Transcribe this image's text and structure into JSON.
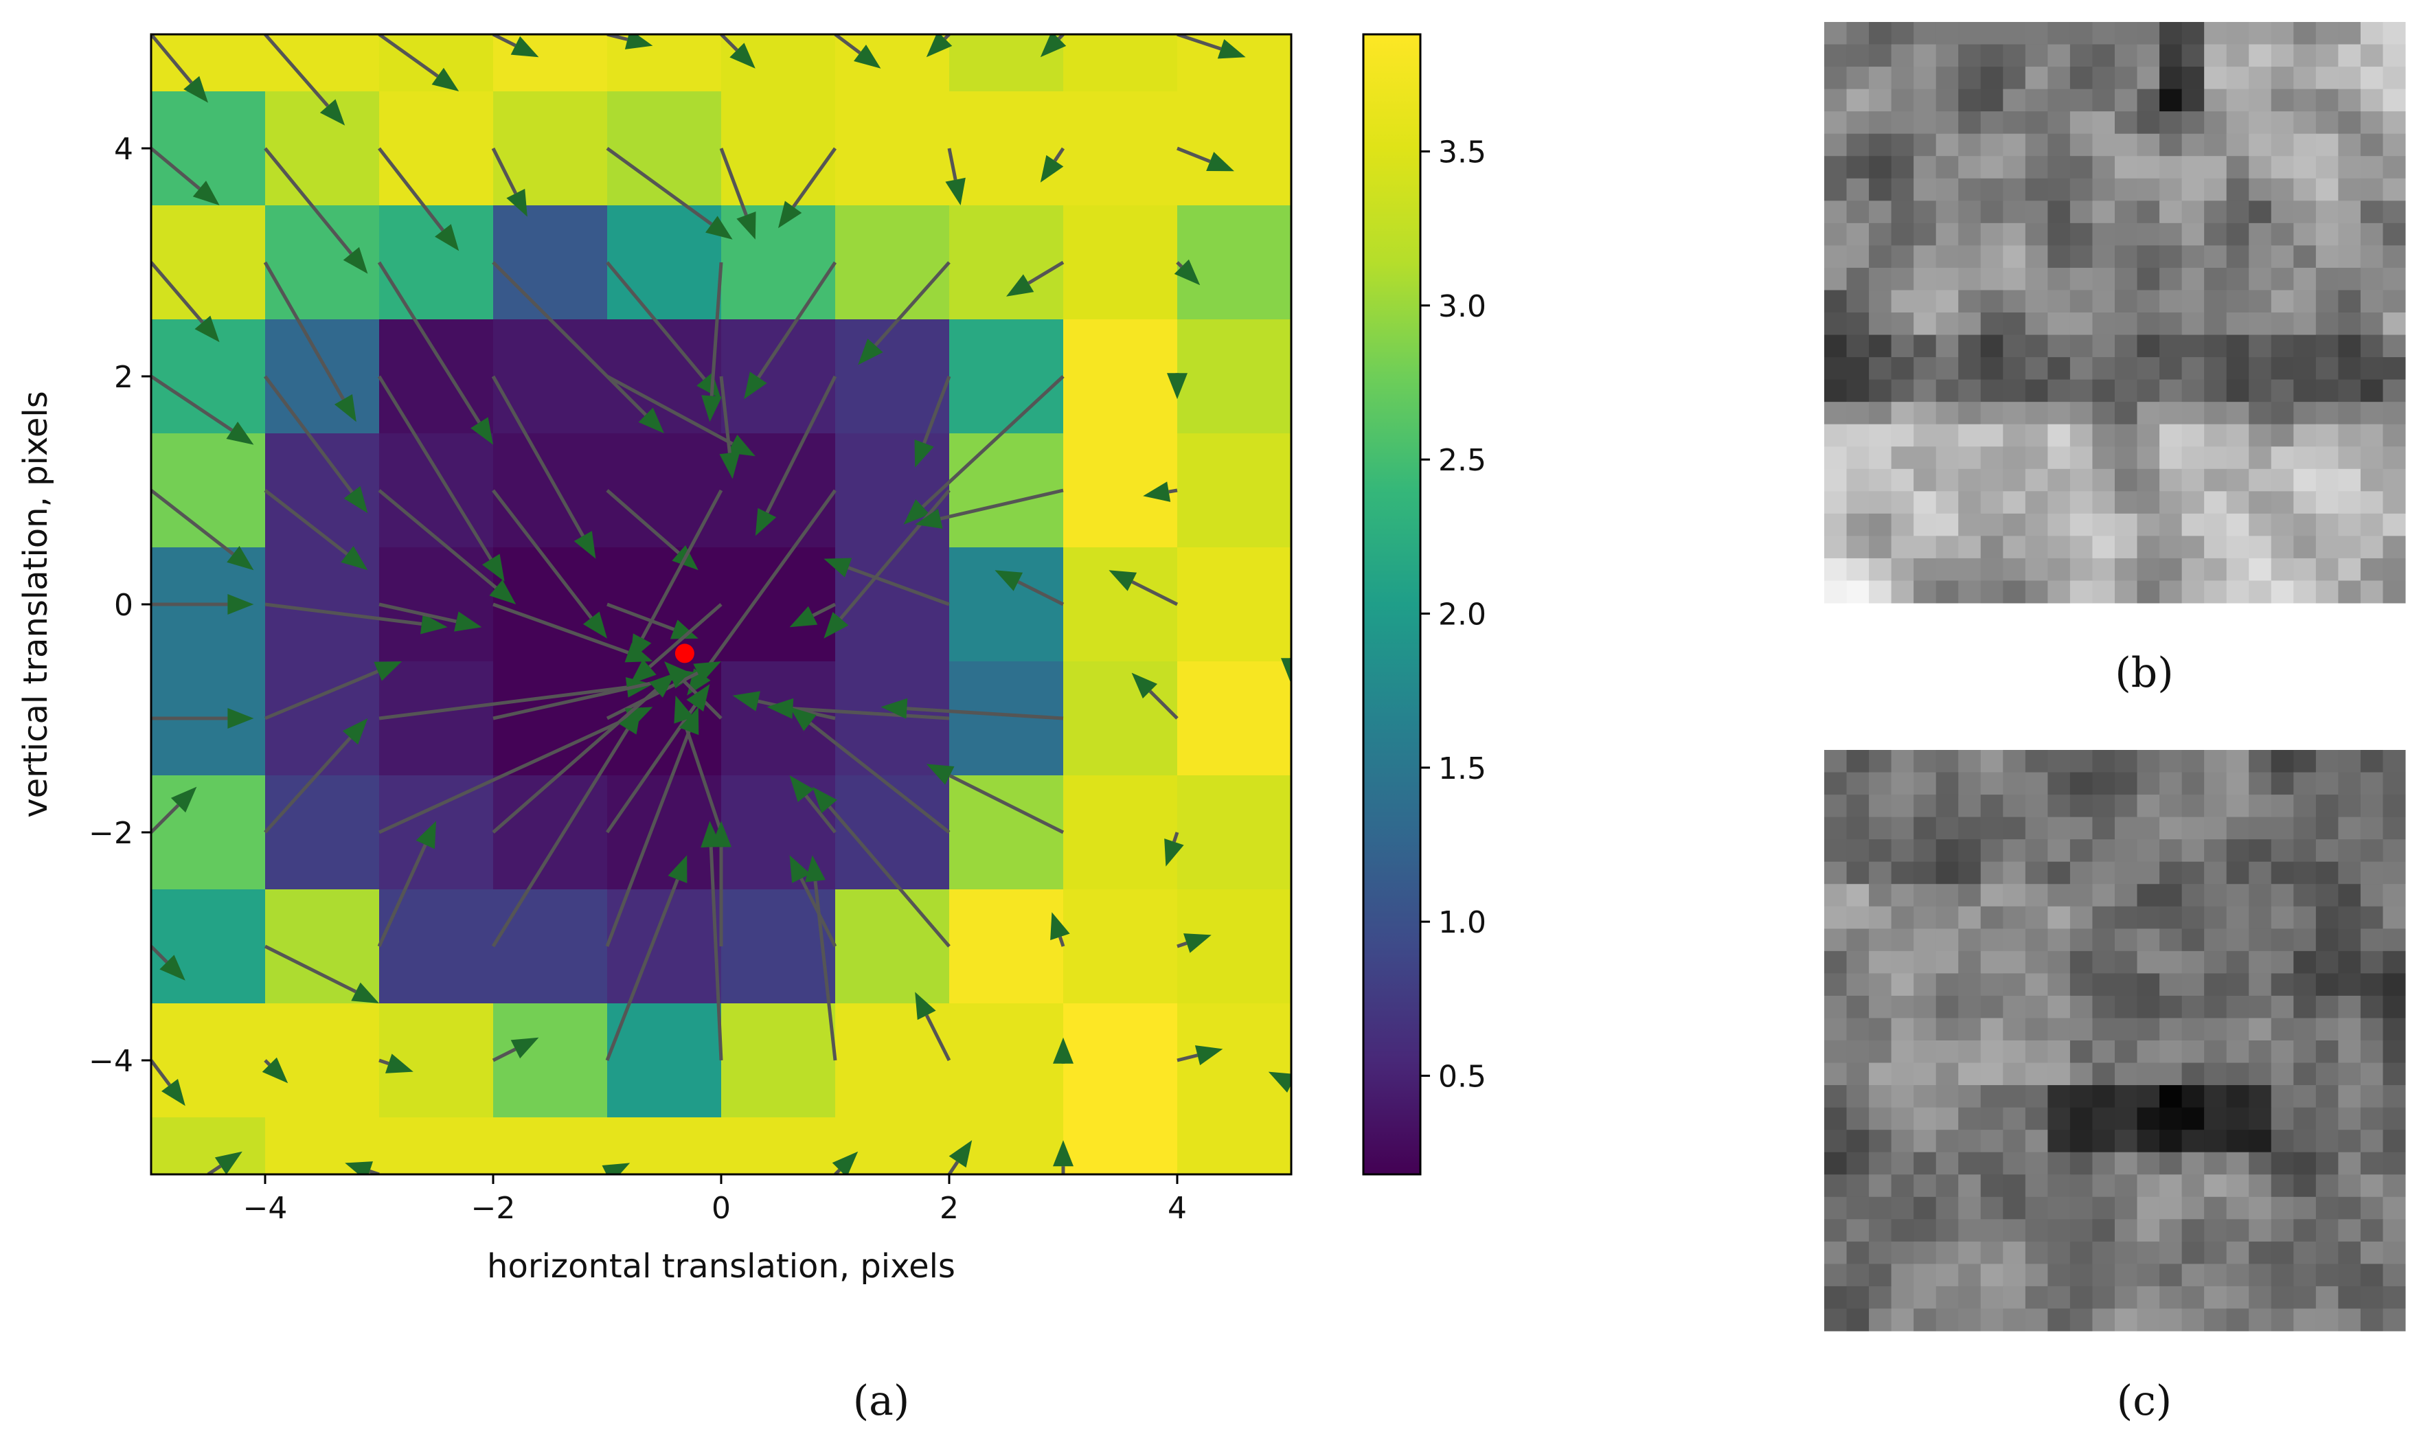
{
  "chart_data": [
    {
      "panel": "a",
      "type": "heatmap",
      "overlay": "quiver",
      "xlabel": "horizontal translation, pixels",
      "ylabel": "vertical translation, pixels",
      "xlim": [
        -5,
        5
      ],
      "ylim": [
        -5,
        5
      ],
      "xticks": [
        -4,
        -2,
        0,
        2,
        4
      ],
      "yticks": [
        -4,
        -2,
        0,
        2,
        4
      ],
      "xtick_labels": [
        "−4",
        "−2",
        "0",
        "2",
        "4"
      ],
      "ytick_labels": [
        "−4",
        "−2",
        "0",
        "2",
        "4"
      ],
      "grid_x_centers": [
        -4.5,
        -3.5,
        -2.5,
        -1.5,
        -0.5,
        0.5,
        1.5,
        2.5,
        3.5,
        4.5
      ],
      "grid_y_centers_top_to_bottom": [
        5.0,
        4.0,
        3.0,
        2.0,
        1.0,
        0.0,
        -1.0,
        -2.0,
        -3.0,
        -4.0,
        -5.0
      ],
      "values": [
        [
          3.6,
          3.6,
          3.5,
          3.7,
          3.6,
          3.5,
          3.6,
          3.3,
          3.5,
          3.6
        ],
        [
          2.5,
          3.2,
          3.6,
          3.3,
          3.1,
          3.5,
          3.6,
          3.6,
          3.6,
          3.6
        ],
        [
          3.4,
          2.5,
          2.3,
          1.1,
          2.0,
          2.5,
          3.0,
          3.2,
          3.5,
          2.9
        ],
        [
          2.3,
          1.3,
          0.3,
          0.4,
          0.4,
          0.5,
          0.7,
          2.2,
          3.8,
          3.2
        ],
        [
          2.8,
          0.6,
          0.4,
          0.3,
          0.3,
          0.3,
          0.6,
          2.9,
          3.8,
          3.4
        ],
        [
          1.5,
          0.6,
          0.3,
          0.2,
          0.2,
          0.2,
          0.6,
          1.7,
          3.4,
          3.6
        ],
        [
          1.5,
          0.6,
          0.4,
          0.2,
          0.2,
          0.4,
          0.6,
          1.4,
          3.3,
          3.8
        ],
        [
          2.7,
          0.8,
          0.6,
          0.4,
          0.3,
          0.5,
          0.7,
          3.0,
          3.5,
          3.4
        ],
        [
          2.1,
          3.1,
          0.8,
          0.8,
          0.6,
          0.8,
          3.1,
          3.8,
          3.6,
          3.5
        ],
        [
          3.6,
          3.6,
          3.4,
          2.8,
          2.0,
          3.2,
          3.6,
          3.6,
          3.9,
          3.6
        ],
        [
          3.3,
          3.6,
          3.6,
          3.6,
          3.6,
          3.6,
          3.6,
          3.6,
          3.9,
          3.6
        ]
      ],
      "marker": {
        "x": -0.32,
        "y": -0.43,
        "color": "#ff0000"
      },
      "arrow_color": "#555555",
      "arrowhead_color": "#1e6b2a",
      "arrows": [
        [
          -5,
          5,
          -4.5,
          4.4
        ],
        [
          -4,
          5,
          -3.3,
          4.2
        ],
        [
          -3,
          5,
          -2.3,
          4.5
        ],
        [
          -2,
          5,
          -1.6,
          4.8
        ],
        [
          -1,
          5,
          -0.6,
          4.9
        ],
        [
          0,
          5,
          0.3,
          4.7
        ],
        [
          1,
          5,
          1.4,
          4.7
        ],
        [
          2,
          5,
          1.8,
          4.8
        ],
        [
          3,
          5,
          2.8,
          4.8
        ],
        [
          4,
          5,
          4.6,
          4.8
        ],
        [
          -4,
          4,
          -3.1,
          2.9
        ],
        [
          -3,
          4,
          -2.3,
          3.1
        ],
        [
          -2,
          4,
          -1.7,
          3.4
        ],
        [
          -1,
          4,
          0.1,
          3.2
        ],
        [
          0,
          4,
          0.3,
          3.2
        ],
        [
          1,
          4,
          0.5,
          3.3
        ],
        [
          2,
          4,
          2.1,
          3.5
        ],
        [
          3,
          4,
          2.8,
          3.7
        ],
        [
          4,
          4,
          4.5,
          3.8
        ],
        [
          -5,
          4,
          -4.4,
          3.5
        ],
        [
          -4,
          3,
          -3.2,
          1.6
        ],
        [
          -3,
          3,
          -2.0,
          1.4
        ],
        [
          -2,
          3,
          -0.5,
          1.5
        ],
        [
          -1,
          3,
          0.0,
          1.8
        ],
        [
          0,
          3,
          -0.1,
          1.6
        ],
        [
          1,
          3,
          0.2,
          1.8
        ],
        [
          2,
          3,
          1.2,
          2.1
        ],
        [
          3,
          3,
          2.5,
          2.7
        ],
        [
          4,
          3,
          4.2,
          2.8
        ],
        [
          -5,
          3,
          -4.4,
          2.3
        ],
        [
          -5,
          2,
          -4.1,
          1.4
        ],
        [
          -4,
          2,
          -3.1,
          0.8
        ],
        [
          -3,
          2,
          -1.9,
          0.2
        ],
        [
          -2,
          2,
          -1.1,
          0.4
        ],
        [
          -1,
          2,
          0.3,
          1.3
        ],
        [
          0,
          2,
          0.1,
          1.1
        ],
        [
          1,
          2,
          0.3,
          0.6
        ],
        [
          2,
          2,
          1.7,
          1.2
        ],
        [
          3,
          2,
          1.6,
          0.7
        ],
        [
          4,
          2,
          4.0,
          1.8
        ],
        [
          -5,
          1,
          -4.1,
          0.3
        ],
        [
          -4,
          1,
          -3.1,
          0.3
        ],
        [
          -3,
          1,
          -1.8,
          0.0
        ],
        [
          -2,
          1,
          -1.0,
          -0.3
        ],
        [
          -1,
          1,
          -0.2,
          0.3
        ],
        [
          0,
          1,
          -0.8,
          -0.5
        ],
        [
          1,
          1,
          -0.3,
          -0.8
        ],
        [
          2,
          1,
          0.9,
          -0.3
        ],
        [
          3,
          1,
          1.7,
          0.7
        ],
        [
          4,
          1,
          3.7,
          0.95
        ],
        [
          -5,
          0,
          -4.1,
          0.0
        ],
        [
          -4,
          0,
          -2.4,
          -0.2
        ],
        [
          -3,
          0,
          -2.1,
          -0.2
        ],
        [
          -2,
          0,
          -0.6,
          -0.5
        ],
        [
          -1,
          0,
          -0.2,
          -0.3
        ],
        [
          0,
          0,
          -0.8,
          -0.7
        ],
        [
          1,
          0,
          0.6,
          -0.2
        ],
        [
          2,
          0,
          0.9,
          0.4
        ],
        [
          3,
          0,
          2.4,
          0.3
        ],
        [
          4,
          0,
          3.4,
          0.3
        ],
        [
          -5,
          -1,
          -4.1,
          -1.0
        ],
        [
          -4,
          -1,
          -2.8,
          -0.5
        ],
        [
          -3,
          -1,
          -0.6,
          -0.7
        ],
        [
          -2,
          -1,
          -0.2,
          -0.6
        ],
        [
          -1,
          -1,
          0.0,
          -0.5
        ],
        [
          0,
          -1,
          -0.5,
          -0.5
        ],
        [
          1,
          -1,
          0.1,
          -0.8
        ],
        [
          2,
          -1,
          0.4,
          -0.9
        ],
        [
          3,
          -1,
          1.4,
          -0.9
        ],
        [
          4,
          -1,
          3.6,
          -0.6
        ],
        [
          -5,
          -2,
          -4.6,
          -1.6
        ],
        [
          -4,
          -2,
          -3.1,
          -1.0
        ],
        [
          -3,
          -2,
          -0.6,
          -0.9
        ],
        [
          -2,
          -2,
          -0.4,
          -0.6
        ],
        [
          -1,
          -2,
          -0.1,
          -0.7
        ],
        [
          0,
          -2,
          -0.4,
          -0.8
        ],
        [
          1,
          -2,
          0.6,
          -1.5
        ],
        [
          2,
          -2,
          0.6,
          -0.9
        ],
        [
          3,
          -2,
          1.8,
          -1.4
        ],
        [
          4,
          -2,
          3.9,
          -2.3
        ],
        [
          -5,
          -3,
          -4.7,
          -3.3
        ],
        [
          -4,
          -3,
          -3.0,
          -3.5
        ],
        [
          -3,
          -3,
          -2.5,
          -1.9
        ],
        [
          -2,
          -3,
          -0.7,
          -0.9
        ],
        [
          -1,
          -3,
          -0.2,
          -0.9
        ],
        [
          0,
          -3,
          0.0,
          -1.9
        ],
        [
          1,
          -3,
          0.6,
          -2.2
        ],
        [
          2,
          -3,
          0.8,
          -1.6
        ],
        [
          3,
          -3,
          2.9,
          -2.7
        ],
        [
          4,
          -3,
          4.3,
          -2.9
        ],
        [
          -4,
          -4,
          -3.8,
          -4.2
        ],
        [
          -3,
          -4,
          -2.7,
          -4.1
        ],
        [
          -2,
          -4,
          -1.6,
          -3.8
        ],
        [
          -1,
          -4,
          -0.3,
          -2.2
        ],
        [
          0,
          -4,
          -0.1,
          -1.9
        ],
        [
          1,
          -4,
          0.8,
          -2.2
        ],
        [
          2,
          -4,
          1.7,
          -3.4
        ],
        [
          3,
          -4,
          3.0,
          -3.8
        ],
        [
          4,
          -4,
          4.4,
          -3.9
        ],
        [
          -5,
          -4,
          -4.7,
          -4.4
        ],
        [
          -4.5,
          -5,
          -4.2,
          -4.8
        ],
        [
          -3,
          -5,
          -3.3,
          -4.9
        ],
        [
          -1,
          -5,
          -0.8,
          -4.9
        ],
        [
          1,
          -5,
          1.2,
          -4.8
        ],
        [
          2,
          -5,
          2.2,
          -4.7
        ],
        [
          3,
          -5,
          3.0,
          -4.7
        ],
        [
          5,
          -4.2,
          4.8,
          -4.1
        ],
        [
          5,
          -0.5,
          5.0,
          -0.7
        ]
      ],
      "colorbar": {
        "ticks": [
          0.5,
          1.0,
          1.5,
          2.0,
          2.5,
          3.0,
          3.5
        ],
        "tick_labels": [
          "0.5",
          "1.0",
          "1.5",
          "2.0",
          "2.5",
          "3.0",
          "3.5"
        ],
        "vmin": 0.18,
        "vmax": 3.88,
        "colormap": "viridis"
      },
      "label": "(a)"
    },
    {
      "panel": "b",
      "type": "heatmap",
      "colormap": "gray",
      "rows": 26,
      "cols": 26,
      "seed": 1337,
      "label": "(b)"
    },
    {
      "panel": "c",
      "type": "heatmap",
      "colormap": "gray",
      "rows": 26,
      "cols": 26,
      "seed": 4242,
      "label": "(c)"
    }
  ]
}
